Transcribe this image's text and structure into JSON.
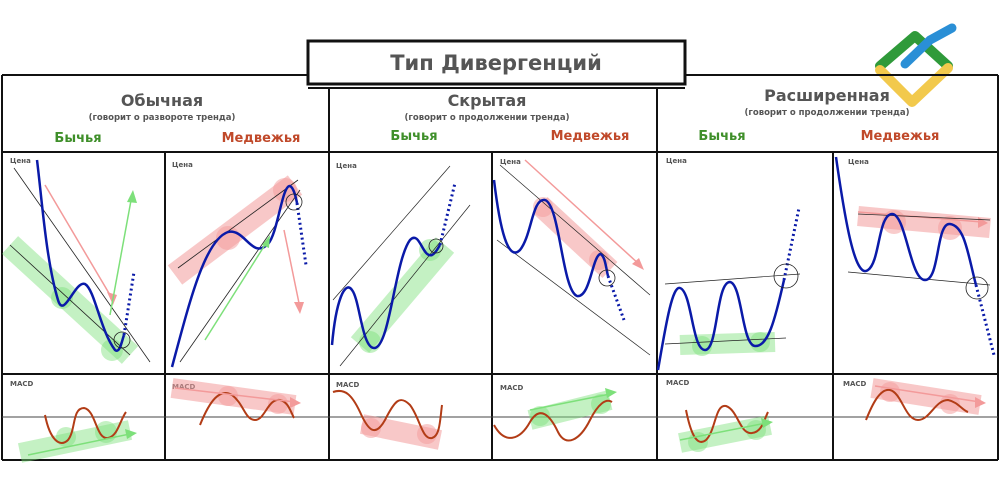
{
  "title": "Тип Дивергенций",
  "colors": {
    "bull": "#3f8f2a",
    "bear": "#c0492a",
    "price": "#0a1aa8",
    "macd": "#b23c16",
    "green_fill": "#7de07a",
    "red_fill": "#f39a9a",
    "frame": "#111111"
  },
  "groups": [
    {
      "name": "Обычная",
      "subtitle": "(говорит о развороте тренда)",
      "bull_label": "Бычья",
      "bear_label": "Медвежья"
    },
    {
      "name": "Скрытая",
      "subtitle": "(говорит о продолжении тренда)",
      "bull_label": "Бычья",
      "bear_label": "Медвежья"
    },
    {
      "name": "Расширенная",
      "subtitle": "(говорит о продолжении тренда)",
      "bull_label": "Бычья",
      "bear_label": "Медвежья"
    }
  ],
  "panel_labels": {
    "price": "Цена",
    "indicator": "MACD"
  },
  "logo": {
    "name": "brand-logo",
    "colors": [
      "#2f9a3a",
      "#2a8fd6",
      "#f2c94c"
    ]
  }
}
